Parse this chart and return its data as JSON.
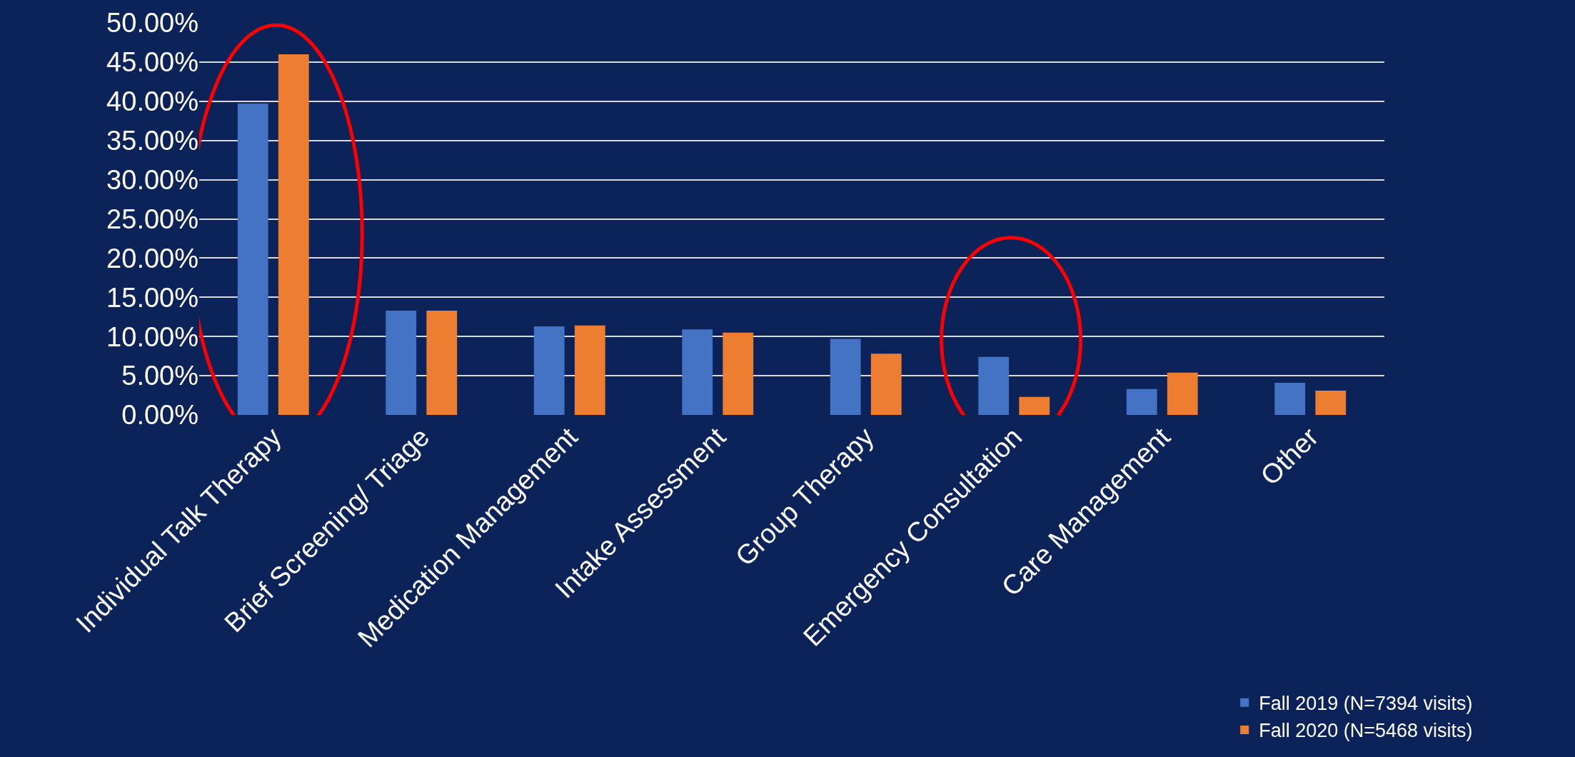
{
  "chart_data": {
    "type": "bar",
    "categories": [
      "Individual Talk Therapy",
      "Brief Screening/ Triage",
      "Medication Management",
      "Intake Assessment",
      "Group Therapy",
      "Emergency Consultation",
      "Care Management",
      "Other"
    ],
    "series": [
      {
        "name": "Fall 2019 (N=7394 visits)",
        "color": "#4472c4",
        "values": [
          39.7,
          13.3,
          11.3,
          10.9,
          9.7,
          7.4,
          3.3,
          4.1
        ]
      },
      {
        "name": "Fall 2020 (N=5468 visits)",
        "color": "#ed7d31",
        "values": [
          46.0,
          13.3,
          11.4,
          10.5,
          7.8,
          2.3,
          5.4,
          3.1
        ]
      }
    ],
    "ylim": [
      0,
      50
    ],
    "yticks": [
      {
        "value": 0,
        "label": "0.00%"
      },
      {
        "value": 5,
        "label": "5.00%"
      },
      {
        "value": 10,
        "label": "10.00%"
      },
      {
        "value": 15,
        "label": "15.00%"
      },
      {
        "value": 20,
        "label": "20.00%"
      },
      {
        "value": 25,
        "label": "25.00%"
      },
      {
        "value": 30,
        "label": "30.00%"
      },
      {
        "value": 35,
        "label": "35.00%"
      },
      {
        "value": 40,
        "label": "40.00%"
      },
      {
        "value": 45,
        "label": "45.00%"
      },
      {
        "value": 50,
        "label": "50.00%"
      }
    ],
    "grid": "y",
    "legend": "bottom right"
  }
}
